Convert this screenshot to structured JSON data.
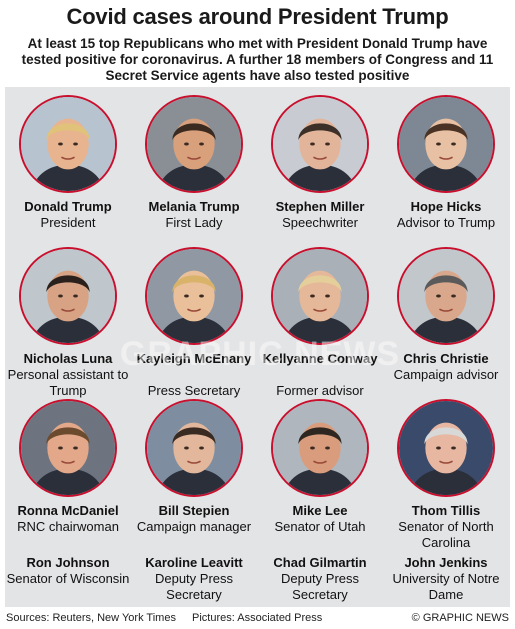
{
  "header": {
    "title": "Covid cases around President Trump",
    "subtitle": "At least 15 top Republicans who met with President Donald Trump have tested positive for coronavirus. A further 18 members of Congress and 11 Secret Service agents have also tested positive"
  },
  "people": [
    {
      "name": "Donald Trump",
      "role": "President"
    },
    {
      "name": "Melania Trump",
      "role": "First Lady"
    },
    {
      "name": "Stephen Miller",
      "role": "Speechwriter"
    },
    {
      "name": "Hope Hicks",
      "role": "Advisor to Trump"
    },
    {
      "name": "Nicholas Luna",
      "role": "Personal assistant to Trump"
    },
    {
      "name": "Kayleigh McEnany",
      "role": "Press Secretary"
    },
    {
      "name": "Kellyanne Conway",
      "role": "Former advisor"
    },
    {
      "name": "Chris Christie",
      "role": "Campaign advisor"
    },
    {
      "name": "Ronna McDaniel",
      "role": "RNC chairwoman"
    },
    {
      "name": "Bill Stepien",
      "role": "Campaign manager"
    },
    {
      "name": "Mike Lee",
      "role": "Senator of Utah"
    },
    {
      "name": "Thom Tillis",
      "role": "Senator of North Carolina"
    }
  ],
  "others": [
    {
      "name": "Ron Johnson",
      "role": "Senator of Wisconsin"
    },
    {
      "name": "Karoline Leavitt",
      "role": "Deputy Press Secretary"
    },
    {
      "name": "Chad Gilmartin",
      "role": "Deputy Press Secretary"
    },
    {
      "name": "John Jenkins",
      "role": "University of Notre Dame"
    }
  ],
  "footer": {
    "sources": "Sources: Reuters, New York Times",
    "pictures": "Pictures: Associated Press",
    "credit": "© GRAPHIC NEWS"
  },
  "watermark": "GRAPHIC NEWS",
  "colors": {
    "ring": "#c8102e",
    "panel": "#e3e4e6"
  }
}
